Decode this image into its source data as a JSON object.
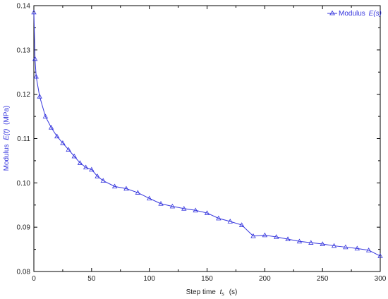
{
  "chart_data": {
    "type": "line",
    "xlabel": "Step time",
    "xlabel_symbol": "t",
    "xlabel_sub": "s",
    "xlabel_unit": "(s)",
    "ylabel": "Modulus",
    "ylabel_symbol": "E(t)",
    "ylabel_unit": "(MPa)",
    "xlim": [
      0,
      300
    ],
    "ylim": [
      0.08,
      0.14
    ],
    "xticks": [
      0,
      50,
      100,
      150,
      200,
      250,
      300
    ],
    "yticks": [
      0.08,
      0.09,
      0.1,
      0.11,
      0.12,
      0.13,
      0.14
    ],
    "grid": false,
    "legend_position": "top-right",
    "series": [
      {
        "name": "Modulus E(s)",
        "legend_prefix": "Modulus",
        "legend_symbol": "E(s)",
        "color": "#3333dd",
        "marker": "triangle-open",
        "x": [
          0,
          1,
          2,
          5,
          10,
          15,
          20,
          25,
          30,
          35,
          40,
          45,
          50,
          55,
          60,
          70,
          80,
          90,
          100,
          110,
          120,
          130,
          140,
          150,
          160,
          170,
          180,
          190,
          200,
          210,
          220,
          230,
          240,
          250,
          260,
          270,
          280,
          290,
          300
        ],
        "values": [
          0.1385,
          0.128,
          0.124,
          0.1195,
          0.115,
          0.1125,
          0.1105,
          0.109,
          0.1075,
          0.106,
          0.1045,
          0.1035,
          0.103,
          0.1015,
          0.1005,
          0.0992,
          0.0987,
          0.0978,
          0.0965,
          0.0953,
          0.0947,
          0.0942,
          0.0938,
          0.0932,
          0.092,
          0.0913,
          0.0905,
          0.088,
          0.0882,
          0.0878,
          0.0873,
          0.0868,
          0.0865,
          0.0862,
          0.0858,
          0.0855,
          0.0852,
          0.0848,
          0.0835
        ]
      }
    ]
  }
}
